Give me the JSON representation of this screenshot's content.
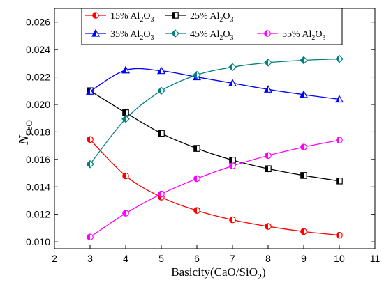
{
  "chart_data": {
    "type": "line",
    "xlabel": "Basicity(CaO/SiO",
    "xlabel_sub": "2",
    "xlabel_end": ")",
    "ylabel": "N",
    "ylabel_sub": "FeO",
    "xlim": [
      2,
      11
    ],
    "ylim": [
      0.0095,
      0.027
    ],
    "xticks": [
      2,
      3,
      4,
      5,
      6,
      7,
      8,
      9,
      10,
      11
    ],
    "yticks": [
      0.01,
      0.012,
      0.014,
      0.016,
      0.018,
      0.02,
      0.022,
      0.024,
      0.026
    ],
    "grid": false,
    "legend_position": "top",
    "x": [
      3,
      4,
      5,
      6,
      7,
      8,
      9,
      10
    ],
    "series": [
      {
        "name": "15% Al2O3",
        "label_main": "15% Al",
        "label_sub1": "2",
        "label_mid": "O",
        "label_sub2": "3",
        "color": "#ff0000",
        "marker": "circle",
        "values": [
          0.01745,
          0.0148,
          0.01325,
          0.01228,
          0.0116,
          0.01112,
          0.01075,
          0.01048
        ]
      },
      {
        "name": "25% Al2O3",
        "label_main": "25% Al",
        "label_sub1": "2",
        "label_mid": "O",
        "label_sub2": "3",
        "color": "#000000",
        "marker": "square",
        "values": [
          0.021,
          0.0194,
          0.0179,
          0.0168,
          0.01595,
          0.01532,
          0.01483,
          0.01443
        ]
      },
      {
        "name": "35% Al2O3",
        "label_main": "35% Al",
        "label_sub1": "2",
        "label_mid": "O",
        "label_sub2": "3",
        "color": "#0000ff",
        "marker": "triangle",
        "values": [
          0.02095,
          0.0225,
          0.02245,
          0.022,
          0.02155,
          0.0211,
          0.02072,
          0.02038
        ]
      },
      {
        "name": "45% Al2O3",
        "label_main": "45% Al",
        "label_sub1": "2",
        "label_mid": "O",
        "label_sub2": "3",
        "color": "#008080",
        "marker": "diamond",
        "values": [
          0.01565,
          0.01895,
          0.021,
          0.02215,
          0.02272,
          0.02305,
          0.02322,
          0.02332
        ]
      },
      {
        "name": "55% Al2O3",
        "label_main": "55% Al",
        "label_sub1": "2",
        "label_mid": "O",
        "label_sub2": "3",
        "color": "#ff00ff",
        "marker": "circle",
        "values": [
          0.01035,
          0.01208,
          0.01348,
          0.0146,
          0.01553,
          0.01628,
          0.0169,
          0.0174
        ]
      }
    ]
  }
}
